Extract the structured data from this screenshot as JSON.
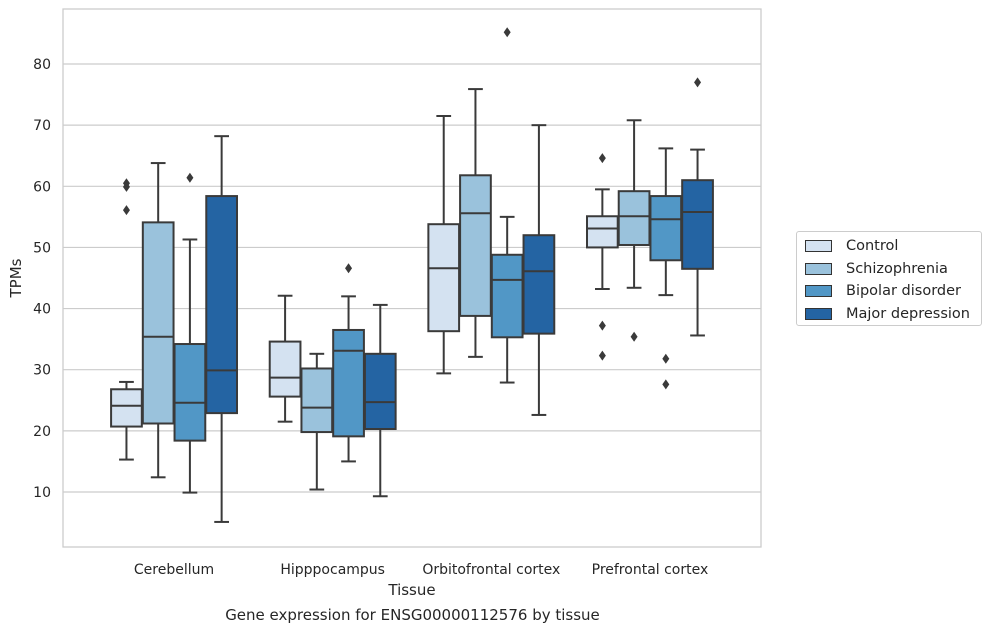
{
  "chart_data": {
    "type": "box",
    "title": "",
    "xlabel": "Tissue",
    "ylabel": "TPMs",
    "caption": "Gene expression for ENSG00000112576 by tissue",
    "ylim": [
      1,
      89
    ],
    "yticks": [
      10,
      20,
      30,
      40,
      50,
      60,
      70,
      80
    ],
    "grid": "horizontal",
    "legend_position": "right",
    "categories": [
      "Cerebellum",
      "Hipppocampus",
      "Orbitofrontal cortex",
      "Prefrontal cortex"
    ],
    "series": [
      {
        "name": "Control",
        "color": "#d4e2f1",
        "boxes": [
          {
            "whisker_low": 15.3,
            "q1": 20.7,
            "median": 24.1,
            "q3": 26.8,
            "whisker_high": 28.0,
            "outliers": [
              56.1,
              59.9,
              60.5
            ]
          },
          {
            "whisker_low": 21.5,
            "q1": 25.6,
            "median": 28.7,
            "q3": 34.6,
            "whisker_high": 42.1,
            "outliers": []
          },
          {
            "whisker_low": 29.4,
            "q1": 36.3,
            "median": 46.6,
            "q3": 53.8,
            "whisker_high": 71.5,
            "outliers": []
          },
          {
            "whisker_low": 43.2,
            "q1": 50.0,
            "median": 53.1,
            "q3": 55.1,
            "whisker_high": 59.5,
            "outliers": [
              32.3,
              37.2,
              64.6
            ]
          }
        ]
      },
      {
        "name": "Schizophrenia",
        "color": "#9ac2dc",
        "boxes": [
          {
            "whisker_low": 12.4,
            "q1": 21.2,
            "median": 35.4,
            "q3": 54.1,
            "whisker_high": 63.8,
            "outliers": []
          },
          {
            "whisker_low": 10.4,
            "q1": 19.8,
            "median": 23.8,
            "q3": 30.2,
            "whisker_high": 32.6,
            "outliers": []
          },
          {
            "whisker_low": 32.1,
            "q1": 38.8,
            "median": 55.6,
            "q3": 61.8,
            "whisker_high": 75.9,
            "outliers": []
          },
          {
            "whisker_low": 43.4,
            "q1": 50.4,
            "median": 55.1,
            "q3": 59.2,
            "whisker_high": 70.8,
            "outliers": [
              35.4
            ]
          }
        ]
      },
      {
        "name": "Bipolar disorder",
        "color": "#5197c6",
        "boxes": [
          {
            "whisker_low": 9.9,
            "q1": 18.4,
            "median": 24.6,
            "q3": 34.2,
            "whisker_high": 51.3,
            "outliers": [
              61.4
            ]
          },
          {
            "whisker_low": 15.0,
            "q1": 19.1,
            "median": 33.1,
            "q3": 36.5,
            "whisker_high": 42.0,
            "outliers": [
              46.6
            ]
          },
          {
            "whisker_low": 27.9,
            "q1": 35.3,
            "median": 44.7,
            "q3": 48.8,
            "whisker_high": 55.0,
            "outliers": [
              85.2
            ]
          },
          {
            "whisker_low": 42.2,
            "q1": 47.9,
            "median": 54.6,
            "q3": 58.4,
            "whisker_high": 66.2,
            "outliers": [
              27.6,
              31.8
            ]
          }
        ]
      },
      {
        "name": "Major depression",
        "color": "#2464a3",
        "boxes": [
          {
            "whisker_low": 5.1,
            "q1": 22.9,
            "median": 29.9,
            "q3": 58.4,
            "whisker_high": 68.2,
            "outliers": []
          },
          {
            "whisker_low": 9.3,
            "q1": 20.3,
            "median": 24.7,
            "q3": 32.6,
            "whisker_high": 40.6,
            "outliers": []
          },
          {
            "whisker_low": 22.6,
            "q1": 35.9,
            "median": 46.1,
            "q3": 52.0,
            "whisker_high": 70.0,
            "outliers": []
          },
          {
            "whisker_low": 35.6,
            "q1": 46.5,
            "median": 55.8,
            "q3": 61.0,
            "whisker_high": 66.0,
            "outliers": [
              77.0
            ]
          }
        ]
      }
    ]
  }
}
